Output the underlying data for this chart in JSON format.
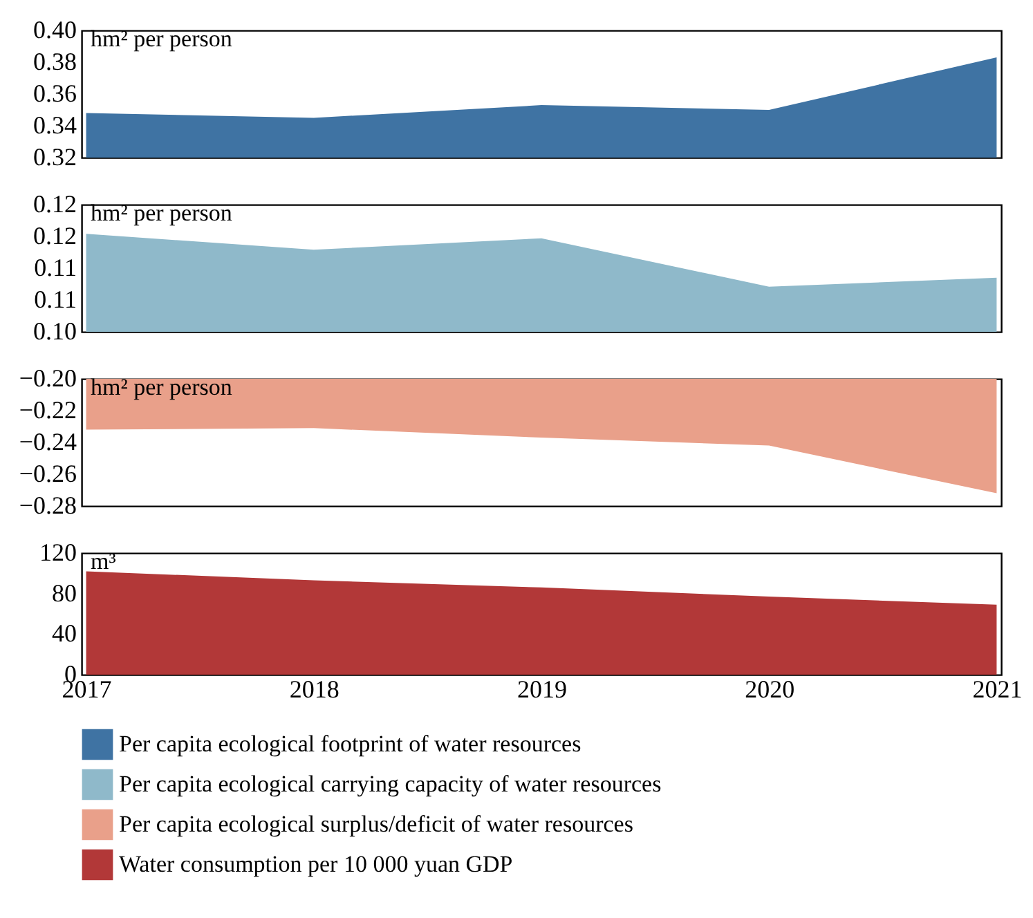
{
  "chart_data": [
    {
      "type": "area",
      "ylabel": "hm² per person",
      "categories": [
        "2017",
        "2018",
        "2019",
        "2020",
        "2021"
      ],
      "series": [
        {
          "name": "Per capita ecological footprint of water resources",
          "color": "#3f73a3",
          "values": [
            0.348,
            0.345,
            0.353,
            0.35,
            0.383
          ]
        }
      ],
      "ylim": [
        0.32,
        0.4
      ],
      "yticks": [
        {
          "value": 0.32,
          "label": "0.32"
        },
        {
          "value": 0.34,
          "label": "0.34"
        },
        {
          "value": 0.36,
          "label": "0.36"
        },
        {
          "value": 0.38,
          "label": "0.38"
        },
        {
          "value": 0.4,
          "label": "0.40"
        }
      ],
      "tick_labels": "y",
      "legend": "bottom"
    },
    {
      "type": "area",
      "ylabel": "hm² per person",
      "categories": [
        "2017",
        "2018",
        "2019",
        "2020",
        "2021"
      ],
      "series": [
        {
          "name": "Per capita ecological carrying capacity of water resources",
          "color": "#8fb9ca",
          "values": [
            0.1154,
            0.1129,
            0.1147,
            0.1071,
            0.1085
          ]
        }
      ],
      "ylim": [
        0.1,
        0.12
      ],
      "yticks": [
        {
          "value": 0.1,
          "label": "0.10"
        },
        {
          "value": 0.105,
          "label": "0.11"
        },
        {
          "value": 0.11,
          "label": "0.11"
        },
        {
          "value": 0.115,
          "label": "0.12"
        },
        {
          "value": 0.12,
          "label": "0.12"
        }
      ],
      "tick_labels": "y",
      "legend": "bottom"
    },
    {
      "type": "area",
      "ylabel": "hm² per person",
      "categories": [
        "2017",
        "2018",
        "2019",
        "2020",
        "2021"
      ],
      "series": [
        {
          "name": "Per capita ecological surplus/deficit of water resources",
          "color": "#e9a08a",
          "values": [
            -0.232,
            -0.231,
            -0.237,
            -0.242,
            -0.272
          ]
        }
      ],
      "ylim": [
        -0.28,
        -0.2
      ],
      "yticks": [
        {
          "value": -0.28,
          "label": "−0.28"
        },
        {
          "value": -0.26,
          "label": "−0.26"
        },
        {
          "value": -0.24,
          "label": "−0.24"
        },
        {
          "value": -0.22,
          "label": "−0.22"
        },
        {
          "value": -0.2,
          "label": "−0.20"
        }
      ],
      "tick_labels": "y",
      "legend": "bottom"
    },
    {
      "type": "area",
      "ylabel": "m³",
      "categories": [
        "2017",
        "2018",
        "2019",
        "2020",
        "2021"
      ],
      "series": [
        {
          "name": "Water consumption per 10 000 yuan GDP",
          "color": "#b23838",
          "values": [
            102,
            93,
            86,
            77,
            69
          ]
        }
      ],
      "ylim": [
        0,
        120
      ],
      "yticks": [
        0,
        40,
        80,
        120
      ],
      "legend": "bottom"
    }
  ]
}
